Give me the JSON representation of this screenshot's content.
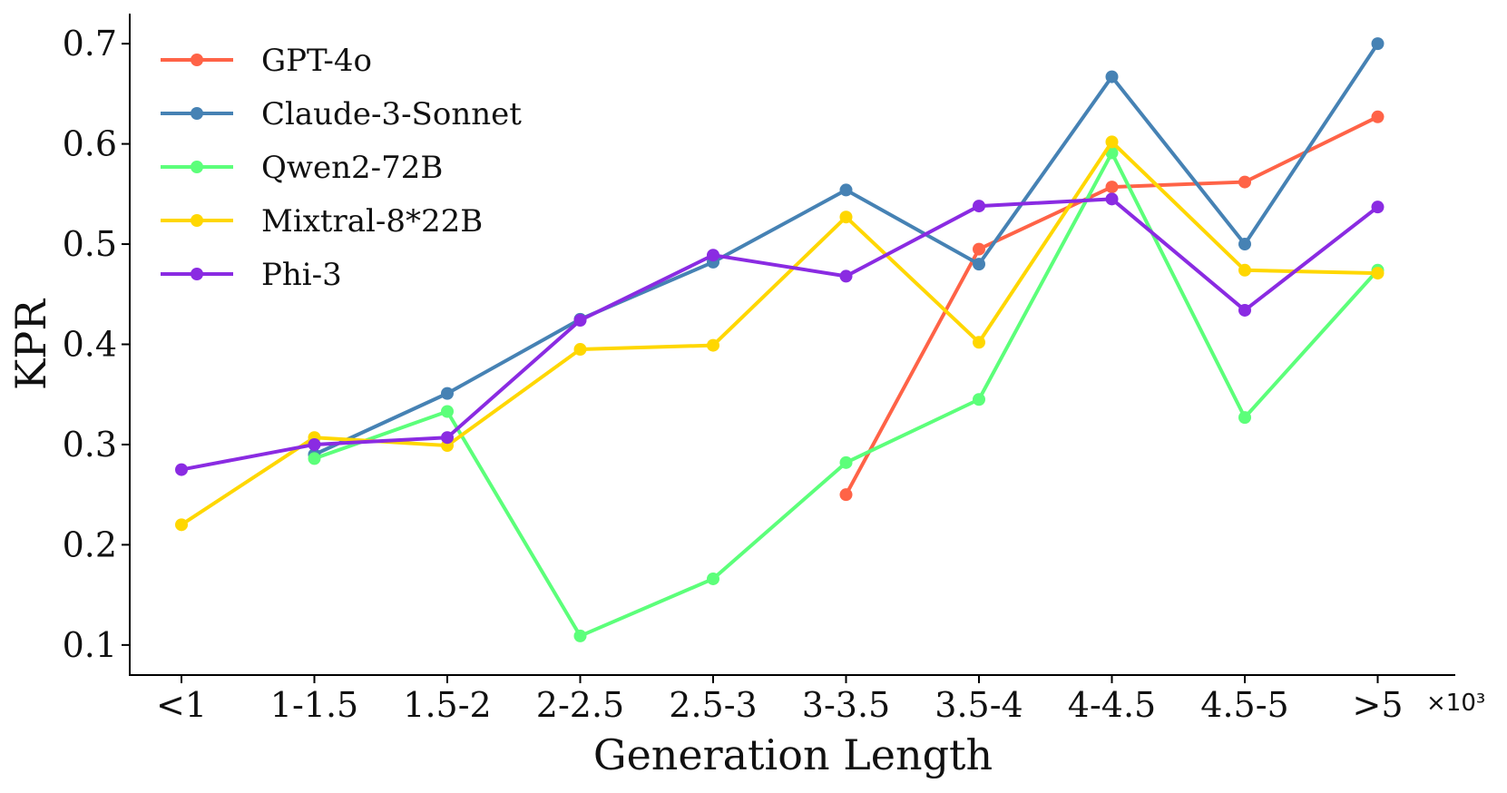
{
  "chart_data": {
    "type": "line",
    "xlabel": "Generation Length",
    "ylabel": "KPR",
    "x_multiplier": "×10³",
    "categories": [
      "<1",
      "1-1.5",
      "1.5-2",
      "2-2.5",
      "2.5-3",
      "3-3.5",
      "3.5-4",
      "4-4.5",
      "4.5-5",
      ">5"
    ],
    "ylim": [
      0.07,
      0.73
    ],
    "yticks": [
      0.1,
      0.2,
      0.3,
      0.4,
      0.5,
      0.6,
      0.7
    ],
    "ytick_labels": [
      "0.1",
      "0.2",
      "0.3",
      "0.4",
      "0.5",
      "0.6",
      "0.7"
    ],
    "legend_position": "top-left",
    "grid": false,
    "series": [
      {
        "name": "GPT-4o",
        "color": "#FF6347",
        "values": [
          null,
          null,
          null,
          null,
          null,
          0.25,
          0.495,
          0.557,
          0.562,
          0.627
        ]
      },
      {
        "name": "Claude-3-Sonnet",
        "color": "#4682B4",
        "values": [
          null,
          0.29,
          0.351,
          0.425,
          0.482,
          0.554,
          0.48,
          0.667,
          0.5,
          0.7
        ]
      },
      {
        "name": "Qwen2-72B",
        "color": "#5CFF7A",
        "values": [
          null,
          0.286,
          0.333,
          0.109,
          0.166,
          0.282,
          0.345,
          0.591,
          0.327,
          0.474
        ]
      },
      {
        "name": "Mixtral-8*22B",
        "color": "#FFD700",
        "values": [
          0.22,
          0.307,
          0.299,
          0.395,
          0.399,
          0.527,
          0.402,
          0.602,
          0.474,
          0.471
        ]
      },
      {
        "name": "Phi-3",
        "color": "#8A2BE2",
        "values": [
          0.275,
          0.3,
          0.307,
          0.424,
          0.489,
          0.468,
          0.538,
          0.545,
          0.434,
          0.537
        ]
      }
    ]
  }
}
